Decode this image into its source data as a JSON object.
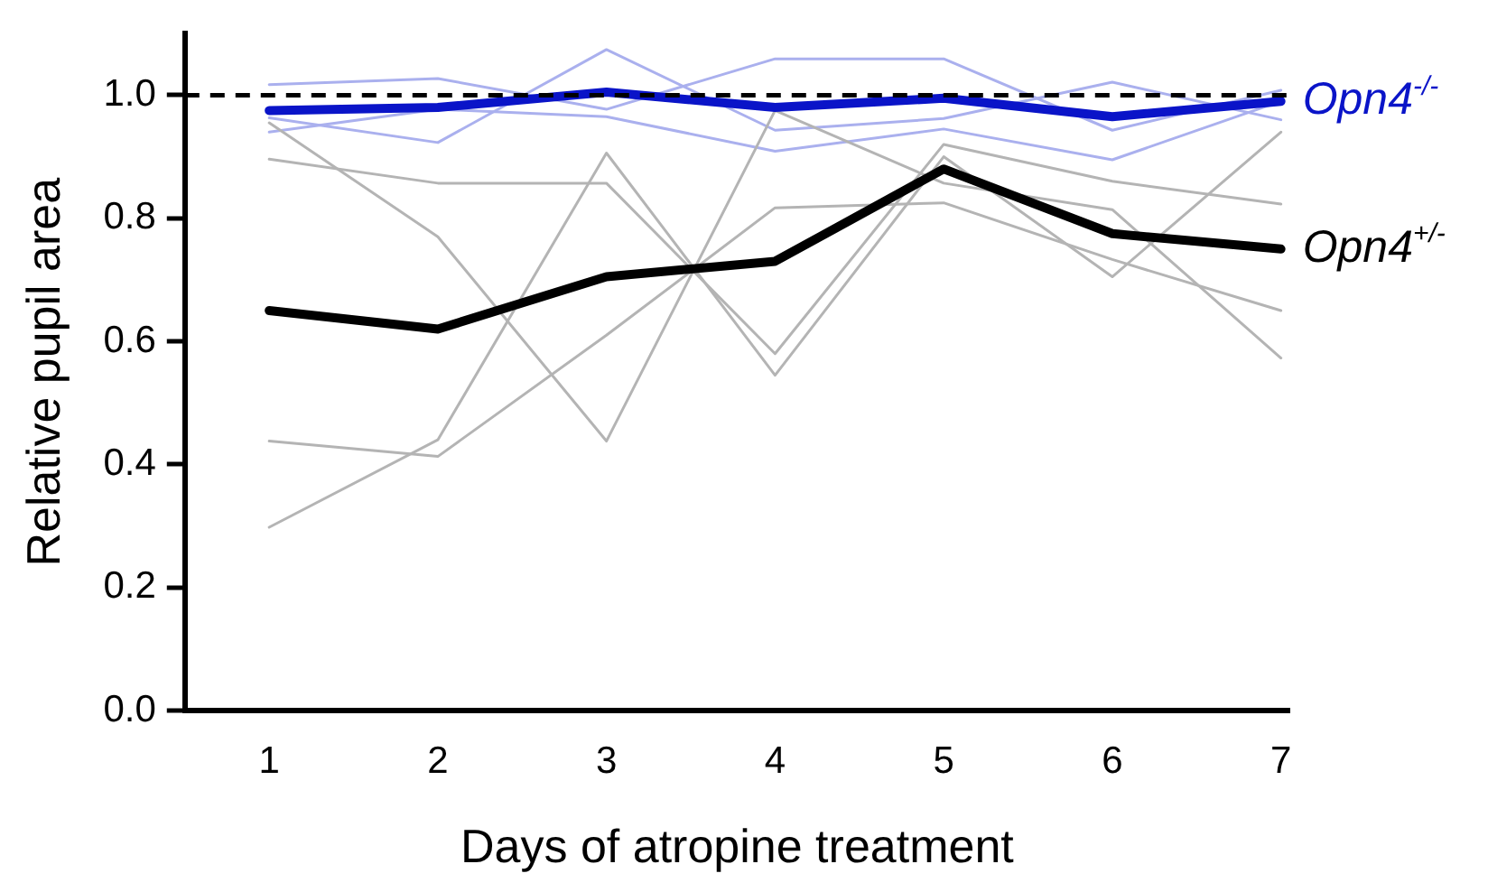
{
  "chart_data": {
    "type": "line",
    "xlabel": "Days of atropine treatment",
    "ylabel": "Relative pupil area",
    "x": [
      1,
      2,
      3,
      4,
      5,
      6,
      7
    ],
    "series": [
      {
        "color": "#b4b4b4",
        "values": [
          0.955,
          0.77,
          0.438,
          0.975,
          0.857,
          0.814,
          0.573
        ]
      },
      {
        "color": "#b4b4b4",
        "values": [
          0.896,
          0.857,
          0.857,
          0.58,
          0.92,
          0.86,
          0.823
        ]
      },
      {
        "color": "#b4b4b4",
        "values": [
          0.438,
          0.413,
          0.61,
          0.817,
          0.825,
          0.733,
          0.65
        ]
      },
      {
        "color": "#b4b4b4",
        "values": [
          0.298,
          0.44,
          0.906,
          0.545,
          0.9,
          0.705,
          0.94
        ]
      },
      {
        "color": "#aab0ee",
        "values": [
          1.017,
          1.027,
          0.977,
          1.059,
          1.059,
          0.943,
          1.008
        ]
      },
      {
        "color": "#aab0ee",
        "values": [
          0.963,
          0.923,
          1.074,
          0.943,
          0.962,
          1.021,
          0.96
        ]
      },
      {
        "color": "#aab0ee",
        "values": [
          0.94,
          0.977,
          0.965,
          0.909,
          0.945,
          0.895,
          0.99
        ]
      },
      {
        "name": "Opn4$^{-/-}$",
        "color": "#0a14c8",
        "values": [
          0.975,
          0.98,
          1.005,
          0.98,
          0.995,
          0.965,
          0.99
        ]
      },
      {
        "name": "Opn4$^{+/-}$",
        "color": "#000000",
        "values": [
          0.65,
          0.62,
          0.705,
          0.73,
          0.88,
          0.775,
          0.75
        ]
      }
    ],
    "xlim": [
      0.5,
      7.05
    ],
    "xticks": [
      1,
      2,
      3,
      4,
      5,
      6,
      7
    ],
    "ylim": [
      0,
      1.1
    ],
    "yticks": [
      {
        "value": 0,
        "label": "0.0"
      },
      {
        "value": 0.2,
        "label": "0.2"
      },
      {
        "value": 0.4,
        "label": "0.4"
      },
      {
        "value": 0.6,
        "label": "0.6"
      },
      {
        "value": 0.8,
        "label": "0.8"
      },
      {
        "value": 1,
        "label": "1.0"
      }
    ],
    "ref_lines": [
      {
        "axis": "y",
        "value": 1,
        "color": "#000000",
        "line_style": "dashed"
      }
    ],
    "grid": false,
    "legend": false,
    "marker": "none",
    "line_style": "solid"
  }
}
